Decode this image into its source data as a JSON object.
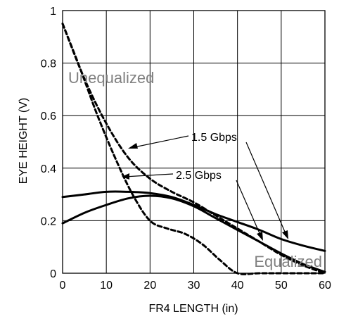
{
  "chart_data": {
    "type": "line",
    "title": "",
    "xlabel": "FR4 LENGTH (in)",
    "ylabel": "EYE HEIGHT (V)",
    "xlim": [
      0,
      60
    ],
    "ylim": [
      0,
      1
    ],
    "xticks": [
      "0",
      "10",
      "20",
      "30",
      "40",
      "50",
      "60"
    ],
    "yticks": [
      "0",
      "0.2",
      "0.4",
      "0.6",
      "0.8",
      "1"
    ],
    "grid": true,
    "legend": "none",
    "region_labels": {
      "unequalized": "Unequalized",
      "equalized": "Equalized"
    },
    "callouts": {
      "rate_1_5": "1.5 Gbps",
      "rate_2_5": "2.5 Gbps"
    },
    "series": [
      {
        "rate": "1.5 Gbps",
        "equalization": "Unequalized",
        "style": "dashed",
        "x": [
          0,
          5,
          10,
          15,
          20,
          25,
          30,
          35,
          40,
          45,
          50,
          55,
          60
        ],
        "y": [
          0.95,
          0.74,
          0.57,
          0.44,
          0.36,
          0.31,
          0.27,
          0.22,
          0.17,
          0.12,
          0.07,
          0.03,
          0.0
        ]
      },
      {
        "rate": "2.5 Gbps",
        "equalization": "Unequalized",
        "style": "dashed",
        "x": [
          0,
          4,
          8,
          12,
          16,
          20,
          24,
          28,
          32,
          36,
          40,
          45,
          50,
          60
        ],
        "y": [
          0.95,
          0.78,
          0.6,
          0.44,
          0.3,
          0.2,
          0.17,
          0.15,
          0.11,
          0.05,
          0.0,
          0.0,
          0.0,
          0.0
        ]
      },
      {
        "rate": "1.5 Gbps",
        "equalization": "Equalized",
        "style": "solid",
        "x": [
          0,
          5,
          10,
          15,
          20,
          25,
          30,
          35,
          40,
          45,
          50,
          55,
          60
        ],
        "y": [
          0.29,
          0.3,
          0.31,
          0.31,
          0.305,
          0.29,
          0.26,
          0.225,
          0.195,
          0.165,
          0.13,
          0.105,
          0.085
        ]
      },
      {
        "rate": "2.5 Gbps",
        "equalization": "Equalized",
        "style": "solid",
        "x": [
          0,
          5,
          10,
          15,
          20,
          25,
          30,
          35,
          40,
          45,
          50,
          55,
          60
        ],
        "y": [
          0.19,
          0.23,
          0.26,
          0.285,
          0.295,
          0.285,
          0.255,
          0.21,
          0.165,
          0.12,
          0.075,
          0.035,
          0.005
        ]
      }
    ]
  }
}
